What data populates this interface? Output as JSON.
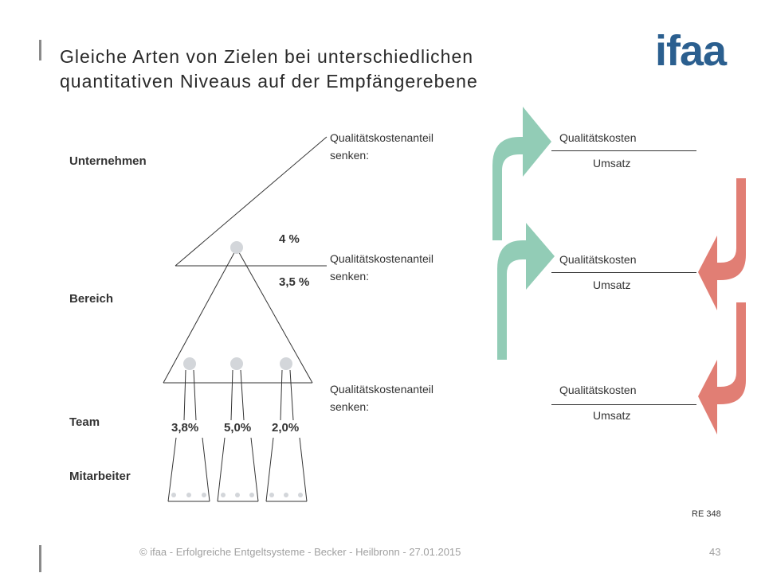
{
  "slide": {
    "title_line1": "Gleiche Arten von Zielen bei unterschiedlichen",
    "title_line2": "quantitativen Niveaus auf der Empfängerebene",
    "logo_text": "ifaa",
    "colors": {
      "logo": "#2b5f8f",
      "arrow_up": "#92ccb6",
      "arrow_down": "#e17e74",
      "dot": "#d3d6da",
      "accent_bar": "#8a8a8a"
    }
  },
  "levels": {
    "unternehmen": "Unternehmen",
    "bereich": "Bereich",
    "team": "Team",
    "mitarbeiter": "Mitarbeiter"
  },
  "percentages": {
    "bereich_top": "4 %",
    "bereich_bottom": "3,5 %",
    "team": [
      "3,8%",
      "5,0%",
      "2,0%"
    ]
  },
  "goals": [
    {
      "line1": "Qualitätskostenanteil",
      "line2": "senken:",
      "numerator": "Qualitätskosten",
      "denominator": "Umsatz",
      "arrow": "up"
    },
    {
      "line1": "Qualitätskostenanteil",
      "line2": "senken:",
      "numerator": "Qualitätskosten",
      "denominator": "Umsatz",
      "arrow": "up+down"
    },
    {
      "line1": "Qualitätskostenanteil",
      "line2": "senken:",
      "numerator": "Qualitätskosten",
      "denominator": "Umsatz",
      "arrow": "down"
    }
  ],
  "note": "RE 348",
  "footer": {
    "text": "© ifaa - Erfolgreiche Entgeltsysteme - Becker - Heilbronn - 27.01.2015",
    "page": "43"
  }
}
